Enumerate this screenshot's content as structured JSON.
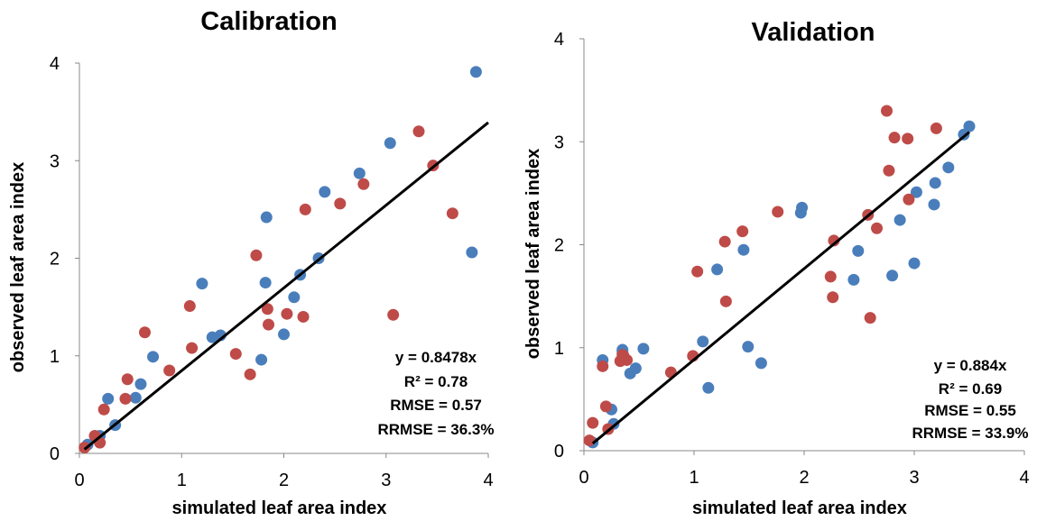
{
  "colors": {
    "series_a": "#4a7ebb",
    "series_b": "#be4b48",
    "fit_line": "#000000"
  },
  "chart_data": [
    {
      "type": "scatter",
      "title": "Calibration",
      "xlabel": "simulated leaf area index",
      "ylabel": "observed  leaf area index",
      "xlim": [
        0,
        4
      ],
      "ylim": [
        0,
        4
      ],
      "xticks": [
        "0",
        "1",
        "2",
        "3",
        "4"
      ],
      "yticks": [
        "0",
        "1",
        "2",
        "3",
        "4"
      ],
      "grid": false,
      "legend": "none",
      "fit": {
        "slope": 0.8478,
        "x_range": [
          0.05,
          4.0
        ]
      },
      "annotations": [
        "y = 0.8478x",
        "R² = 0.78",
        "RMSE = 0.57",
        "RRMSE = 36.3%"
      ],
      "series": [
        {
          "color": "#4a7ebb",
          "x": [
            0.08,
            0.2,
            0.28,
            0.35,
            0.55,
            0.6,
            0.72,
            1.2,
            1.3,
            1.38,
            1.78,
            1.82,
            1.83,
            2.0,
            2.1,
            2.16,
            2.34,
            2.4,
            2.74,
            3.04,
            3.84,
            3.88
          ],
          "y": [
            0.09,
            0.18,
            0.56,
            0.29,
            0.57,
            0.71,
            0.99,
            1.74,
            1.19,
            1.21,
            0.96,
            1.75,
            2.42,
            1.22,
            1.6,
            1.83,
            2.0,
            2.68,
            2.87,
            3.18,
            2.06,
            3.91
          ]
        },
        {
          "color": "#be4b48",
          "x": [
            0.05,
            0.15,
            0.2,
            0.24,
            0.45,
            0.47,
            0.64,
            0.88,
            1.08,
            1.1,
            1.53,
            1.67,
            1.73,
            1.84,
            1.85,
            2.03,
            2.19,
            2.21,
            2.55,
            2.78,
            3.07,
            3.32,
            3.46,
            3.65
          ],
          "y": [
            0.06,
            0.18,
            0.11,
            0.45,
            0.56,
            0.76,
            1.24,
            0.85,
            1.51,
            1.08,
            1.02,
            0.81,
            2.03,
            1.48,
            1.32,
            1.43,
            1.4,
            2.5,
            2.56,
            2.76,
            1.42,
            3.3,
            2.95,
            2.46
          ]
        }
      ]
    },
    {
      "type": "scatter",
      "title": "Validation",
      "xlabel": "simulated leaf area index",
      "ylabel": "observed  leaf area index",
      "xlim": [
        0,
        4
      ],
      "ylim": [
        0,
        4
      ],
      "xticks": [
        "0",
        "1",
        "2",
        "3",
        "4"
      ],
      "yticks": [
        "0",
        "1",
        "2",
        "3",
        "4"
      ],
      "grid": false,
      "legend": "none",
      "fit": {
        "slope": 0.884,
        "x_range": [
          0.08,
          3.5
        ]
      },
      "annotations": [
        "y = 0.884x",
        "R² = 0.69",
        "RMSE = 0.55",
        "RRMSE = 33.9%"
      ],
      "series": [
        {
          "color": "#4a7ebb",
          "x": [
            0.08,
            0.17,
            0.25,
            0.27,
            0.35,
            0.35,
            0.42,
            0.47,
            0.54,
            1.08,
            1.13,
            1.21,
            1.45,
            1.49,
            1.61,
            1.97,
            1.98,
            2.45,
            2.49,
            2.8,
            2.87,
            3.0,
            3.02,
            3.18,
            3.19,
            3.31,
            3.45,
            3.5
          ],
          "y": [
            0.08,
            0.88,
            0.4,
            0.26,
            0.96,
            0.98,
            0.75,
            0.8,
            0.99,
            1.06,
            0.61,
            1.76,
            1.95,
            1.01,
            0.85,
            2.31,
            2.36,
            1.66,
            1.94,
            1.7,
            2.24,
            1.82,
            2.51,
            2.39,
            2.6,
            2.75,
            3.07,
            3.15
          ]
        },
        {
          "color": "#be4b48",
          "x": [
            0.05,
            0.08,
            0.17,
            0.2,
            0.22,
            0.33,
            0.35,
            0.36,
            0.39,
            0.79,
            0.99,
            1.03,
            1.28,
            1.29,
            1.44,
            1.76,
            2.24,
            2.26,
            2.27,
            2.58,
            2.6,
            2.66,
            2.75,
            2.77,
            2.82,
            2.94,
            2.95,
            3.2
          ],
          "y": [
            0.1,
            0.27,
            0.82,
            0.43,
            0.21,
            0.87,
            0.93,
            0.92,
            0.88,
            0.76,
            0.92,
            1.74,
            2.03,
            1.45,
            2.13,
            2.32,
            1.69,
            1.49,
            2.04,
            2.29,
            1.29,
            2.16,
            3.3,
            2.72,
            3.04,
            3.03,
            2.44,
            3.13
          ]
        }
      ]
    }
  ]
}
